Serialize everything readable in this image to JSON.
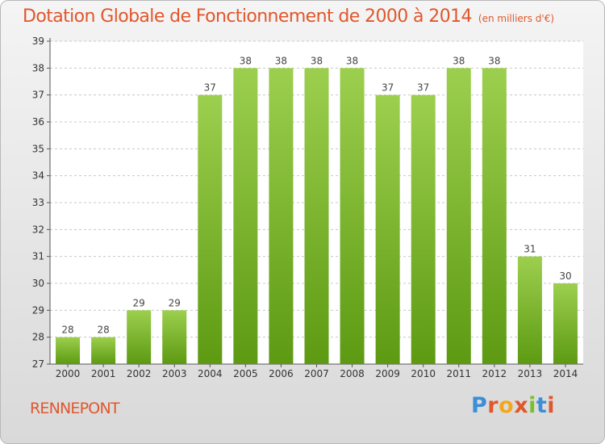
{
  "chart_data": {
    "type": "bar",
    "title": "Dotation Globale de Fonctionnement de 2000 à 2014",
    "subtitle": "(en milliers d'€)",
    "categories": [
      "2000",
      "2001",
      "2002",
      "2003",
      "2004",
      "2005",
      "2006",
      "2007",
      "2008",
      "2009",
      "2010",
      "2011",
      "2012",
      "2013",
      "2014"
    ],
    "values": [
      28,
      28,
      29,
      29,
      37,
      38,
      38,
      38,
      38,
      37,
      37,
      38,
      38,
      31,
      30
    ],
    "ylim": [
      27,
      39
    ],
    "yticks": [
      27,
      28,
      29,
      30,
      31,
      32,
      33,
      34,
      35,
      36,
      37,
      38,
      39
    ],
    "grid": true,
    "bar_color": "#7cbf2e",
    "xlabel": "",
    "ylabel": ""
  },
  "footer": {
    "place": "RENNEPONT",
    "logo_text": "Proxiti",
    "logo_colors": [
      "#3b8fd6",
      "#e0572c",
      "#f2a81d",
      "#e0572c",
      "#7cbf2e",
      "#3b8fd6",
      "#e0572c"
    ]
  },
  "colors": {
    "title": "#e0572c",
    "axis": "#555555",
    "grid": "#c8c8c8"
  }
}
